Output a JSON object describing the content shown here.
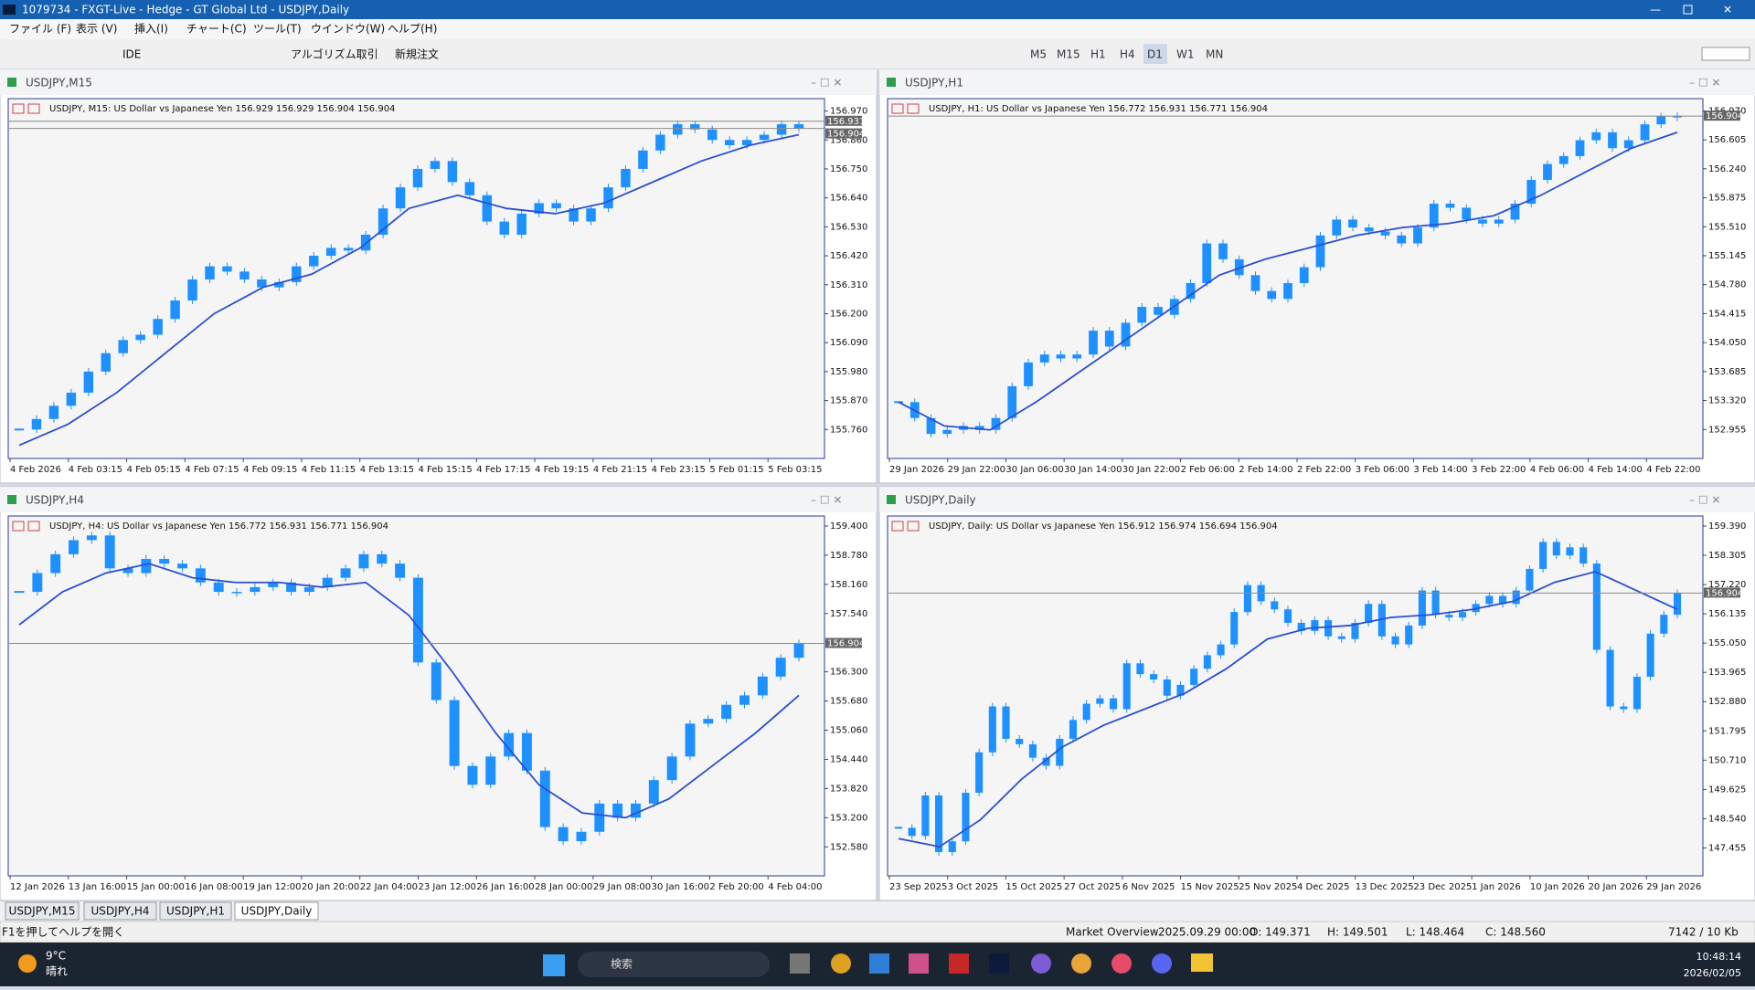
{
  "window": {
    "title": "1079734 - FXGT-Live - Hedge - GT Global Ltd - USDJPY,Daily"
  },
  "menu": [
    "ファイル (F)",
    "表示 (V)",
    "挿入(I)",
    "チャート(C)",
    "ツール(T)",
    "ウインドウ(W)",
    "ヘルプ(H)"
  ],
  "toolbar": {
    "ide": "IDE",
    "algo": "アルゴリズム取引",
    "order": "新規注文",
    "timeframes": [
      "M5",
      "M15",
      "H1",
      "H4",
      "D1",
      "W1",
      "MN"
    ],
    "active": "D1"
  },
  "chart_data": [
    {
      "type": "candlestick",
      "title": "USDJPY,M15",
      "info": "USDJPY, M15: US Dollar vs Japanese Yen  156.929 156.929 156.904 156.904",
      "ylim": [
        155.65,
        157.017
      ],
      "yticks": [
        {
          "value": 156.97,
          "label": "156.970"
        },
        {
          "value": 156.86,
          "label": "156.860"
        },
        {
          "value": 156.75,
          "label": "156.750"
        },
        {
          "value": 156.64,
          "label": "156.640"
        },
        {
          "value": 156.53,
          "label": "156.530"
        },
        {
          "value": 156.42,
          "label": "156.420"
        },
        {
          "value": 156.31,
          "label": "156.310"
        },
        {
          "value": 156.2,
          "label": "156.200"
        },
        {
          "value": 156.09,
          "label": "156.090"
        },
        {
          "value": 155.98,
          "label": "155.980"
        },
        {
          "value": 155.87,
          "label": "155.870"
        },
        {
          "value": 155.76,
          "label": "155.760"
        }
      ],
      "x_labels": [
        "4 Feb 2026",
        "4 Feb 03:15",
        "4 Feb 05:15",
        "4 Feb 07:15",
        "4 Feb 09:15",
        "4 Feb 11:15",
        "4 Feb 13:15",
        "4 Feb 15:15",
        "4 Feb 17:15",
        "4 Feb 19:15",
        "4 Feb 21:15",
        "4 Feb 23:15",
        "5 Feb 01:15",
        "5 Feb 03:15"
      ],
      "price_lines": [
        156.931,
        156.904
      ],
      "close": [
        155.76,
        155.8,
        155.85,
        155.9,
        155.98,
        156.05,
        156.1,
        156.12,
        156.18,
        156.25,
        156.33,
        156.38,
        156.36,
        156.33,
        156.3,
        156.32,
        156.38,
        156.42,
        156.45,
        156.44,
        156.5,
        156.6,
        156.68,
        156.75,
        156.78,
        156.7,
        156.65,
        156.55,
        156.5,
        156.58,
        156.62,
        156.6,
        156.55,
        156.6,
        156.68,
        156.75,
        156.82,
        156.88,
        156.92,
        156.9,
        156.86,
        156.84,
        156.86,
        156.88,
        156.92,
        156.904
      ],
      "ma": [
        155.7,
        155.78,
        155.9,
        156.05,
        156.2,
        156.3,
        156.35,
        156.45,
        156.6,
        156.65,
        156.6,
        156.58,
        156.62,
        156.7,
        156.78,
        156.84,
        156.88
      ]
    },
    {
      "type": "candlestick",
      "title": "USDJPY,H1",
      "info": "USDJPY, H1: US Dollar vs Japanese Yen  156.772 156.931 156.771 156.904",
      "ylim": [
        152.59,
        157.124
      ],
      "yticks": [
        {
          "value": 156.97,
          "label": "156.970"
        },
        156.605,
        {
          "value": 156.24,
          "label": "156.240"
        },
        155.875,
        {
          "value": 155.51,
          "label": "155.510"
        },
        155.145,
        {
          "value": 154.78,
          "label": "154.780"
        },
        154.415,
        {
          "value": 154.05,
          "label": "154.050"
        },
        153.685,
        {
          "value": 153.32,
          "label": "153.320"
        },
        152.955
      ],
      "x_labels": [
        "29 Jan 2026",
        "29 Jan 22:00",
        "30 Jan 06:00",
        "30 Jan 14:00",
        "30 Jan 22:00",
        "2 Feb 06:00",
        "2 Feb 14:00",
        "2 Feb 22:00",
        "3 Feb 06:00",
        "3 Feb 14:00",
        "3 Feb 22:00",
        "4 Feb 06:00",
        "4 Feb 14:00",
        "4 Feb 22:00"
      ],
      "price_lines": [
        156.904
      ],
      "close": [
        153.3,
        153.1,
        152.9,
        152.95,
        153.0,
        152.95,
        153.1,
        153.5,
        153.8,
        153.9,
        153.85,
        153.9,
        154.2,
        154.0,
        154.3,
        154.5,
        154.4,
        154.6,
        154.8,
        155.3,
        155.1,
        154.9,
        154.7,
        154.6,
        154.8,
        155.0,
        155.4,
        155.6,
        155.5,
        155.45,
        155.4,
        155.3,
        155.5,
        155.8,
        155.75,
        155.6,
        155.55,
        155.6,
        155.8,
        156.1,
        156.3,
        156.4,
        156.6,
        156.7,
        156.5,
        156.6,
        156.8,
        156.9,
        156.904
      ],
      "ma": [
        153.3,
        153.0,
        152.95,
        153.3,
        153.7,
        154.1,
        154.5,
        154.9,
        155.1,
        155.25,
        155.4,
        155.5,
        155.55,
        155.65,
        155.9,
        156.2,
        156.5,
        156.7
      ]
    },
    {
      "type": "candlestick",
      "title": "USDJPY,H4",
      "info": "USDJPY, H4: US Dollar vs Japanese Yen  156.772 156.931 156.771 156.904",
      "ylim": [
        151.964,
        159.613
      ],
      "yticks": [
        {
          "value": 159.4,
          "label": "159.400"
        },
        {
          "value": 158.78,
          "label": "158.780"
        },
        {
          "value": 158.16,
          "label": "158.160"
        },
        {
          "value": 157.54,
          "label": "157.540"
        },
        {
          "value": 156.3,
          "label": "156.300"
        },
        {
          "value": 155.68,
          "label": "155.680"
        },
        {
          "value": 155.06,
          "label": "155.060"
        },
        {
          "value": 154.44,
          "label": "154.440"
        },
        {
          "value": 153.82,
          "label": "153.820"
        },
        {
          "value": 153.2,
          "label": "153.200"
        },
        {
          "value": 152.58,
          "label": "152.580"
        }
      ],
      "x_labels": [
        "12 Jan 2026",
        "13 Jan 16:00",
        "15 Jan 00:00",
        "16 Jan 08:00",
        "19 Jan 12:00",
        "20 Jan 20:00",
        "22 Jan 04:00",
        "23 Jan 12:00",
        "26 Jan 16:00",
        "28 Jan 00:00",
        "29 Jan 08:00",
        "30 Jan 16:00",
        "2 Feb 20:00",
        "4 Feb 04:00"
      ],
      "price_lines": [
        156.904
      ],
      "close": [
        158.0,
        158.4,
        158.8,
        159.1,
        159.2,
        158.5,
        158.4,
        158.7,
        158.6,
        158.5,
        158.2,
        158.0,
        158.0,
        158.1,
        158.2,
        158.0,
        158.1,
        158.3,
        158.5,
        158.8,
        158.6,
        158.3,
        156.5,
        155.7,
        154.3,
        153.9,
        154.5,
        155.0,
        154.2,
        153.0,
        152.7,
        152.9,
        153.5,
        153.2,
        153.5,
        154.0,
        154.5,
        155.2,
        155.3,
        155.6,
        155.8,
        156.2,
        156.6,
        156.904
      ],
      "ma": [
        157.3,
        158.0,
        158.4,
        158.6,
        158.3,
        158.2,
        158.2,
        158.1,
        158.2,
        157.5,
        156.3,
        155.0,
        153.9,
        153.3,
        153.2,
        153.6,
        154.3,
        155.0,
        155.8
      ]
    },
    {
      "type": "candlestick",
      "title": "USDJPY,Daily",
      "info": "USDJPY, Daily: US Dollar vs Japanese Yen  156.912 156.974 156.694 156.904",
      "ylim": [
        146.42,
        159.762
      ],
      "yticks": [
        {
          "value": 159.39,
          "label": "159.390"
        },
        158.305,
        {
          "value": 157.22,
          "label": "157.220"
        },
        156.135,
        {
          "value": 155.05,
          "label": "155.050"
        },
        153.965,
        {
          "value": 152.88,
          "label": "152.880"
        },
        151.795,
        {
          "value": 150.71,
          "label": "150.710"
        },
        149.625,
        {
          "value": 148.54,
          "label": "148.540"
        },
        147.455
      ],
      "x_labels": [
        "23 Sep 2025",
        "3 Oct 2025",
        "15 Oct 2025",
        "27 Oct 2025",
        "6 Nov 2025",
        "15 Nov 2025",
        "25 Nov 2025",
        "4 Dec 2025",
        "13 Dec 2025",
        "23 Dec 2025",
        "1 Jan 2026",
        "10 Jan 2026",
        "20 Jan 2026",
        "29 Jan 2026"
      ],
      "price_lines": [
        156.904
      ],
      "close": [
        148.2,
        147.9,
        149.4,
        147.3,
        147.7,
        149.5,
        151.0,
        152.7,
        151.5,
        151.3,
        150.8,
        150.5,
        151.5,
        152.2,
        152.8,
        153.0,
        152.6,
        154.3,
        153.9,
        153.7,
        153.1,
        153.5,
        154.1,
        154.6,
        155.0,
        156.2,
        157.2,
        156.6,
        156.3,
        155.8,
        155.5,
        155.9,
        155.3,
        155.2,
        155.8,
        156.5,
        155.3,
        155.0,
        155.7,
        157.0,
        156.1,
        156.0,
        156.2,
        156.5,
        156.8,
        156.5,
        157.0,
        157.8,
        158.8,
        158.3,
        158.6,
        158.0,
        154.8,
        152.7,
        152.6,
        153.8,
        155.4,
        156.1,
        156.904
      ],
      "ma": [
        147.8,
        147.5,
        148.5,
        150.0,
        151.2,
        152.0,
        152.6,
        153.2,
        154.1,
        155.2,
        155.6,
        155.7,
        156.0,
        156.1,
        156.3,
        156.6,
        157.3,
        157.7,
        157.0,
        156.3
      ]
    }
  ],
  "style": {
    "candle_color": "#1e90ff",
    "ma_color": "#2b4fcf",
    "price_line_color": "#8a8a8a"
  },
  "tabs": [
    "USDJPY,M15",
    "USDJPY,H4",
    "USDJPY,H1",
    "USDJPY,Daily"
  ],
  "active_tab": "USDJPY,Daily",
  "status": {
    "help": "F1を押してヘルプを開く",
    "market": "Market Overview",
    "time": "2025.09.29 00:00",
    "open": "O: 149.371",
    "high": "H: 149.501",
    "low": "L: 148.464",
    "close": "C: 148.560",
    "traffic": "7142 / 10 Kb"
  },
  "taskbar": {
    "temp": "9°C",
    "weather": "晴れ",
    "search": "検索",
    "clock": "10:48:14",
    "date": "2026/02/05"
  }
}
